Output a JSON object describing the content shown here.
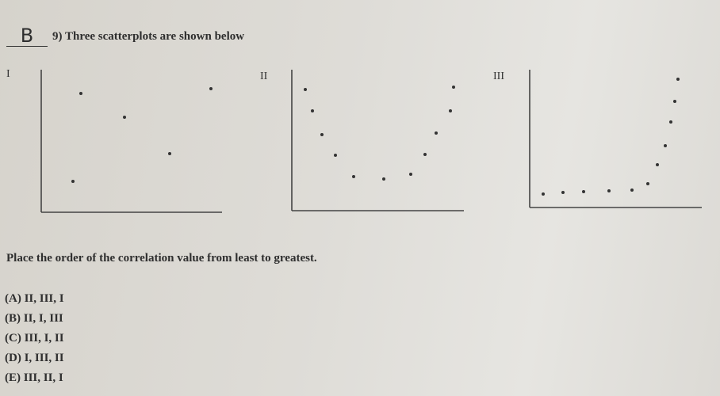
{
  "question": {
    "answer": "B",
    "stem": "9) Three scatterplots are shown below",
    "plots": [
      {
        "label": "I"
      },
      {
        "label": "II"
      },
      {
        "label": "III"
      }
    ],
    "prompt": "Place the order of the correlation value from least to greatest.",
    "options": [
      "(A) II, III, I",
      "(B) II, I, III",
      "(C) III, I, II",
      "(D) I, III, II",
      "(E) III, II, I"
    ]
  }
}
